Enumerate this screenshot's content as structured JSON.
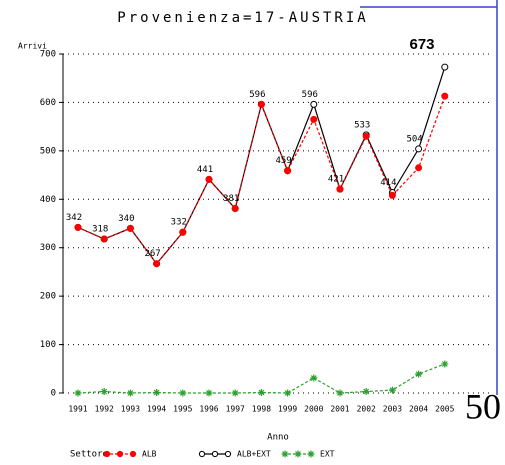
{
  "chart_data": {
    "type": "line",
    "title": "Provenienza=17-AUSTRIA",
    "y_label": "Arrivi",
    "x_label": "Anno",
    "legend_title": "Settore",
    "categories": [
      "1991",
      "1992",
      "1993",
      "1994",
      "1995",
      "1996",
      "1997",
      "1998",
      "1999",
      "2000",
      "2001",
      "2002",
      "2003",
      "2004",
      "2005"
    ],
    "series": [
      {
        "name": "ALB",
        "color": "#ff0000",
        "values": [
          342,
          318,
          340,
          267,
          332,
          441,
          381,
          596,
          459,
          565,
          421,
          530,
          408,
          465,
          613
        ]
      },
      {
        "name": "ALB+EXT",
        "color": "#000000",
        "values": [
          342,
          318,
          340,
          267,
          332,
          441,
          381,
          596,
          459,
          596,
          421,
          533,
          414,
          504,
          673
        ]
      },
      {
        "name": "EXT",
        "color": "#2ca02c",
        "values": [
          0,
          3,
          0,
          1,
          0,
          0,
          0,
          1,
          0,
          31,
          0,
          3,
          6,
          39,
          60
        ]
      }
    ],
    "ylim": [
      0,
      700
    ],
    "yticks": [
      0,
      100,
      200,
      300,
      400,
      500,
      600,
      700
    ],
    "grid": true
  },
  "page_number": "50"
}
